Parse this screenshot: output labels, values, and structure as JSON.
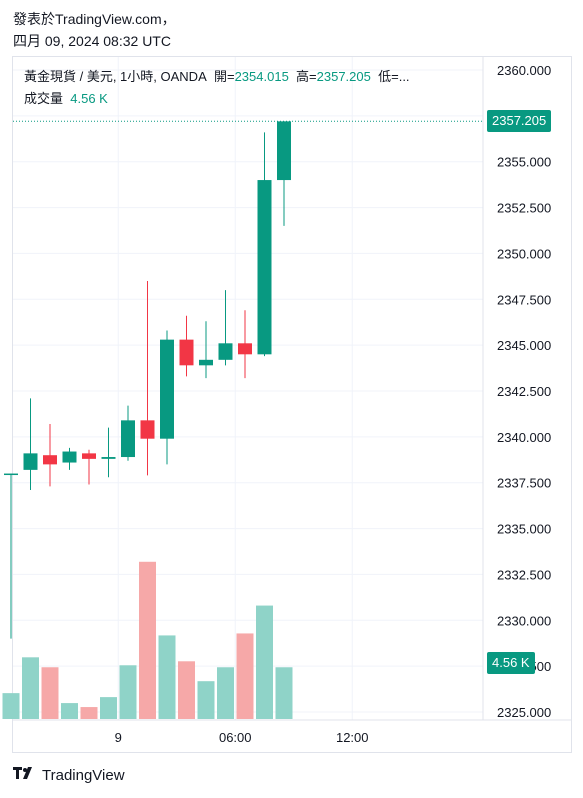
{
  "header": {
    "published": "發表於TradingView.com，",
    "datetime": "四月 09, 2024 08:32 UTC"
  },
  "legend": {
    "symbol": "黃金現貨 / 美元, 1小時, OANDA",
    "open_label": "開=",
    "open_value": "2354.015",
    "high_label": "高=",
    "high_value": "2357.205",
    "low_label": "低=...",
    "volume_label": "成交量",
    "volume_value": "4.56 K"
  },
  "badges": {
    "price": "2357.205",
    "volume": "4.56 K"
  },
  "footer": {
    "logo_text": "TradingView"
  },
  "colors": {
    "up": "#089981",
    "down": "#f23645",
    "up_vol": "#8fd3c8",
    "down_vol": "#f6a8a8"
  },
  "chart_data": {
    "type": "candlestick",
    "y_ticks": [
      "2360.000",
      "2357.500",
      "2355.000",
      "2352.500",
      "2350.000",
      "2347.500",
      "2345.000",
      "2342.500",
      "2340.000",
      "2337.500",
      "2335.000",
      "2332.500",
      "2330.000",
      "2327.500",
      "2325.000"
    ],
    "ylim": [
      2325.0,
      2360.0
    ],
    "x_ticks": [
      {
        "label": "9",
        "index": 5.5
      },
      {
        "label": "06:00",
        "index": 11.5
      },
      {
        "label": "12:00",
        "index": 17.5
      }
    ],
    "last_price": 2357.205,
    "candles": [
      {
        "o": 2338.0,
        "h": 2338.0,
        "l": 2329.0,
        "c": 2338.0,
        "dir": "up",
        "vol": 1.3
      },
      {
        "o": 2338.2,
        "h": 2342.1,
        "l": 2337.1,
        "c": 2339.1,
        "dir": "up",
        "vol": 3.1
      },
      {
        "o": 2339.0,
        "h": 2340.7,
        "l": 2337.3,
        "c": 2338.5,
        "dir": "down",
        "vol": 2.6
      },
      {
        "o": 2338.6,
        "h": 2339.4,
        "l": 2338.2,
        "c": 2339.2,
        "dir": "up",
        "vol": 0.8
      },
      {
        "o": 2339.1,
        "h": 2339.3,
        "l": 2337.4,
        "c": 2338.8,
        "dir": "down",
        "vol": 0.6
      },
      {
        "o": 2338.8,
        "h": 2340.5,
        "l": 2337.8,
        "c": 2338.9,
        "dir": "up",
        "vol": 1.1
      },
      {
        "o": 2338.9,
        "h": 2341.7,
        "l": 2338.7,
        "c": 2340.9,
        "dir": "up",
        "vol": 2.7
      },
      {
        "o": 2340.9,
        "h": 2348.5,
        "l": 2337.9,
        "c": 2339.9,
        "dir": "down",
        "vol": 7.9
      },
      {
        "o": 2339.9,
        "h": 2345.8,
        "l": 2338.5,
        "c": 2345.3,
        "dir": "up",
        "vol": 4.2
      },
      {
        "o": 2345.3,
        "h": 2346.6,
        "l": 2343.3,
        "c": 2343.9,
        "dir": "down",
        "vol": 2.9
      },
      {
        "o": 2343.9,
        "h": 2346.3,
        "l": 2343.2,
        "c": 2344.2,
        "dir": "up",
        "vol": 1.9
      },
      {
        "o": 2344.2,
        "h": 2348.0,
        "l": 2343.9,
        "c": 2345.1,
        "dir": "up",
        "vol": 2.6
      },
      {
        "o": 2345.1,
        "h": 2346.9,
        "l": 2343.2,
        "c": 2344.5,
        "dir": "down",
        "vol": 4.3
      },
      {
        "o": 2344.5,
        "h": 2356.6,
        "l": 2344.4,
        "c": 2354.0,
        "dir": "up",
        "vol": 5.7
      },
      {
        "o": 2354.0,
        "h": 2357.2,
        "l": 2351.5,
        "c": 2357.2,
        "dir": "up",
        "vol": 2.6
      }
    ]
  }
}
